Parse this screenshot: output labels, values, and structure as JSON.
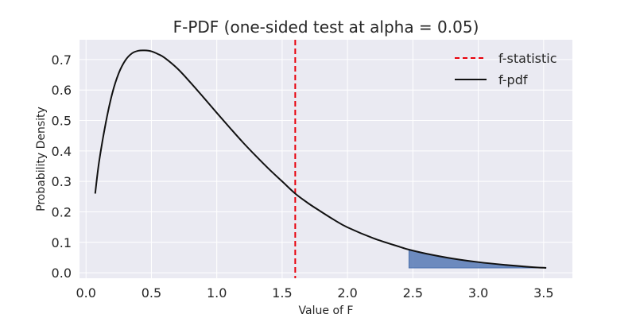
{
  "chart_data": {
    "type": "line",
    "title": "F-PDF (one-sided test at alpha = 0.05)",
    "xlabel": "Value of F",
    "ylabel": "Probability Density",
    "xlim": [
      -0.05,
      3.72
    ],
    "ylim": [
      -0.018,
      0.765
    ],
    "xticks": [
      0.0,
      0.5,
      1.0,
      1.5,
      2.0,
      2.5,
      3.0,
      3.5
    ],
    "xtick_labels": [
      "0.0",
      "0.5",
      "1.0",
      "1.5",
      "2.0",
      "2.5",
      "3.0",
      "3.5"
    ],
    "yticks": [
      0.0,
      0.1,
      0.2,
      0.3,
      0.4,
      0.5,
      0.6,
      0.7
    ],
    "ytick_labels": [
      "0.0",
      "0.1",
      "0.2",
      "0.3",
      "0.4",
      "0.5",
      "0.6",
      "0.7"
    ],
    "grid": true,
    "background_color": "#eaeaf2",
    "legend_position": "top-right",
    "series": [
      {
        "name": "f-pdf",
        "style": "solid",
        "color": "#111111",
        "x": [
          0.07,
          0.1,
          0.15,
          0.2,
          0.25,
          0.3,
          0.35,
          0.4,
          0.45,
          0.5,
          0.55,
          0.6,
          0.7,
          0.8,
          0.9,
          1.0,
          1.1,
          1.2,
          1.3,
          1.4,
          1.5,
          1.6,
          1.7,
          1.8,
          1.9,
          2.0,
          2.2,
          2.4,
          2.47,
          2.6,
          2.8,
          3.0,
          3.2,
          3.4,
          3.52
        ],
        "y": [
          0.26,
          0.365,
          0.49,
          0.588,
          0.655,
          0.697,
          0.72,
          0.729,
          0.73,
          0.727,
          0.718,
          0.706,
          0.67,
          0.624,
          0.575,
          0.525,
          0.476,
          0.428,
          0.383,
          0.34,
          0.3,
          0.26,
          0.228,
          0.2,
          0.173,
          0.149,
          0.113,
          0.085,
          0.076,
          0.063,
          0.047,
          0.035,
          0.026,
          0.019,
          0.016
        ]
      },
      {
        "name": "f-statistic",
        "style": "dashed",
        "color": "#e8000b",
        "vertical_line_x": 1.6
      }
    ],
    "shaded_region": {
      "x_start": 2.47,
      "x_end": 3.52,
      "baseline": 0.016,
      "color": "#4c72b0"
    }
  }
}
